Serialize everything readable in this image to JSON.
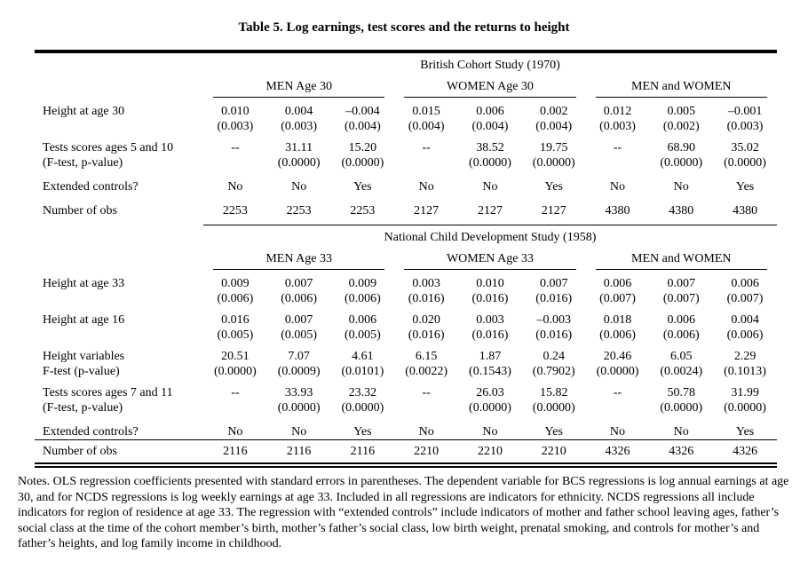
{
  "page": {
    "title": "Table 5. Log earnings, test scores and the returns to height"
  },
  "table": {
    "panels": [
      {
        "study": "British Cohort Study (1970)",
        "groups": [
          "MEN Age 30",
          "WOMEN Age 30",
          "MEN and WOMEN"
        ],
        "rows": [
          {
            "label": [
              "Height at age 30"
            ],
            "cells": [
              [
                "0.010",
                "(0.003)"
              ],
              [
                "0.004",
                "(0.003)"
              ],
              [
                "–0.004",
                "(0.004)"
              ],
              [
                "0.015",
                "(0.004)"
              ],
              [
                "0.006",
                "(0.004)"
              ],
              [
                "0.002",
                "(0.004)"
              ],
              [
                "0.012",
                "(0.003)"
              ],
              [
                "0.005",
                "(0.002)"
              ],
              [
                "–0.001",
                "(0.003)"
              ]
            ]
          },
          {
            "label": [
              "Tests scores ages 5 and 10",
              "(F-test, p-value)"
            ],
            "cells": [
              [
                "--"
              ],
              [
                "31.11",
                "(0.0000)"
              ],
              [
                "15.20",
                "(0.0000)"
              ],
              [
                "--"
              ],
              [
                "38.52",
                "(0.0000)"
              ],
              [
                "19.75",
                "(0.0000)"
              ],
              [
                "--"
              ],
              [
                "68.90",
                "(0.0000)"
              ],
              [
                "35.02",
                "(0.0000)"
              ]
            ]
          },
          {
            "label": [
              "Extended controls?"
            ],
            "single": true,
            "cells": [
              [
                "No"
              ],
              [
                "No"
              ],
              [
                "Yes"
              ],
              [
                "No"
              ],
              [
                "No"
              ],
              [
                "Yes"
              ],
              [
                "No"
              ],
              [
                "No"
              ],
              [
                "Yes"
              ]
            ]
          },
          {
            "label": [
              "Number of obs"
            ],
            "single": true,
            "last_in_panel": true,
            "cells": [
              [
                "2253"
              ],
              [
                "2253"
              ],
              [
                "2253"
              ],
              [
                "2127"
              ],
              [
                "2127"
              ],
              [
                "2127"
              ],
              [
                "4380"
              ],
              [
                "4380"
              ],
              [
                "4380"
              ]
            ]
          }
        ]
      },
      {
        "study": "National Child Development Study (1958)",
        "groups": [
          "MEN Age 33",
          "WOMEN Age 33",
          "MEN and WOMEN"
        ],
        "rows": [
          {
            "label": [
              "Height at age 33"
            ],
            "cells": [
              [
                "0.009",
                "(0.006)"
              ],
              [
                "0.007",
                "(0.006)"
              ],
              [
                "0.009",
                "(0.006)"
              ],
              [
                "0.003",
                "(0.016)"
              ],
              [
                "0.010",
                "(0.016)"
              ],
              [
                "0.007",
                "(0.016)"
              ],
              [
                "0.006",
                "(0.007)"
              ],
              [
                "0.007",
                "(0.007)"
              ],
              [
                "0.006",
                "(0.007)"
              ]
            ]
          },
          {
            "label": [
              "Height at age 16"
            ],
            "cells": [
              [
                "0.016",
                "(0.005)"
              ],
              [
                "0.007",
                "(0.005)"
              ],
              [
                "0.006",
                "(0.005)"
              ],
              [
                "0.020",
                "(0.016)"
              ],
              [
                "0.003",
                "(0.016)"
              ],
              [
                "–0.003",
                "(0.016)"
              ],
              [
                "0.018",
                "(0.006)"
              ],
              [
                "0.006",
                "(0.006)"
              ],
              [
                "0.004",
                "(0.006)"
              ]
            ]
          },
          {
            "label": [
              "Height variables",
              "F-test (p-value)"
            ],
            "cells": [
              [
                "20.51",
                "(0.0000)"
              ],
              [
                "7.07",
                "(0.0009)"
              ],
              [
                "4.61",
                "(0.0101)"
              ],
              [
                "6.15",
                "(0.0022)"
              ],
              [
                "1.87",
                "(0.1543)"
              ],
              [
                "0.24",
                "(0.7902)"
              ],
              [
                "20.46",
                "(0.0000)"
              ],
              [
                "6.05",
                "(0.0024)"
              ],
              [
                "2.29",
                "(0.1013)"
              ]
            ]
          },
          {
            "label": [
              "Tests scores ages 7 and 11",
              "(F-test, p-value)"
            ],
            "cells": [
              [
                "--"
              ],
              [
                "33.93",
                "(0.0000)"
              ],
              [
                "23.32",
                "(0.0000)"
              ],
              [
                "--"
              ],
              [
                "26.03",
                "(0.0000)"
              ],
              [
                "15.82",
                "(0.0000)"
              ],
              [
                "--"
              ],
              [
                "50.78",
                "(0.0000)"
              ],
              [
                "31.99",
                "(0.0000)"
              ]
            ]
          },
          {
            "label": [
              "Extended controls?"
            ],
            "single": true,
            "cells": [
              [
                "No"
              ],
              [
                "No"
              ],
              [
                "Yes"
              ],
              [
                "No"
              ],
              [
                "No"
              ],
              [
                "Yes"
              ],
              [
                "No"
              ],
              [
                "No"
              ],
              [
                "Yes"
              ]
            ]
          },
          {
            "label": [
              "Number of obs"
            ],
            "single": true,
            "rule_above": true,
            "cells": [
              [
                "2116"
              ],
              [
                "2116"
              ],
              [
                "2116"
              ],
              [
                "2210"
              ],
              [
                "2210"
              ],
              [
                "2210"
              ],
              [
                "4326"
              ],
              [
                "4326"
              ],
              [
                "4326"
              ]
            ]
          }
        ]
      }
    ]
  },
  "notes": "Notes. OLS regression coefficients presented with standard errors in parentheses. The dependent variable for BCS regressions is log annual earnings at age 30, and for NCDS regressions is log weekly earnings at age 33. Included in all regressions are indicators for ethnicity. NCDS regressions all include indicators for region of residence at age 33. The regression with “extended controls” include indicators of mother and father school leaving ages, father’s social class at the time of the cohort member’s birth, mother’s father’s social class, low birth weight, prenatal smoking, and controls for mother’s and father’s heights, and log family income in childhood."
}
